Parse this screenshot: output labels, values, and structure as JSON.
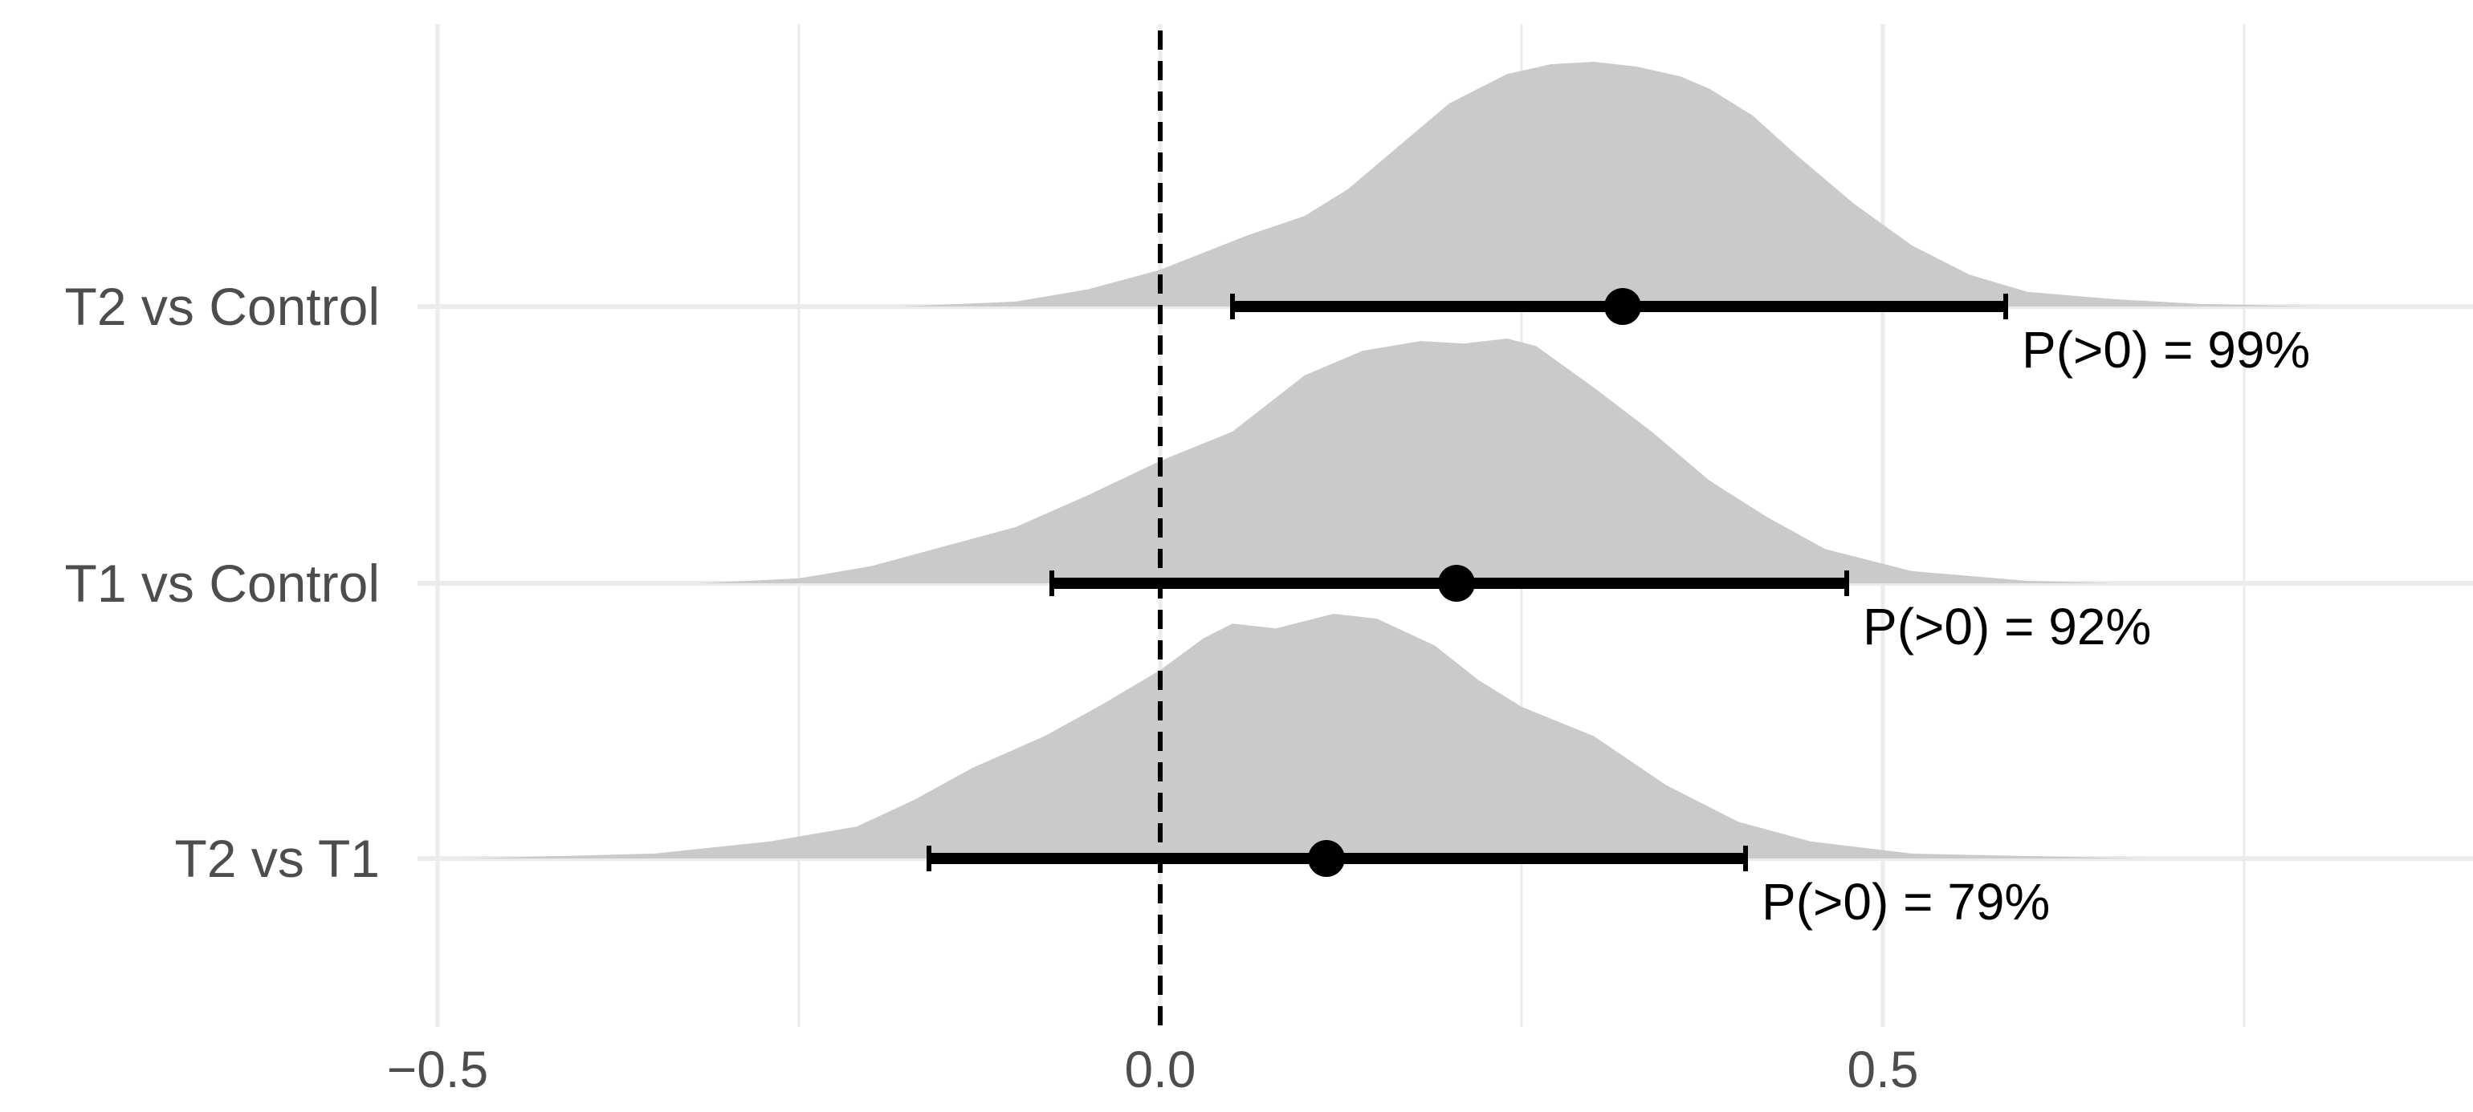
{
  "chart_data": {
    "type": "density-interval",
    "title": "",
    "xlabel": "",
    "ylabel": "",
    "xlim": [
      -0.5,
      0.92
    ],
    "x_ticks": [
      {
        "value": -0.5,
        "label": "−0.5"
      },
      {
        "value": 0.0,
        "label": "0.0"
      },
      {
        "value": 0.5,
        "label": "0.5"
      }
    ],
    "x_minor_ticks": [
      -0.25,
      0.25,
      0.75
    ],
    "reference_line": {
      "x": 0,
      "style": "dashed"
    },
    "grid": true,
    "colors": {
      "density": "#cacaca",
      "interval": "#000000",
      "grid": "#ebebeb"
    },
    "rows": [
      {
        "label": "T2 vs Control",
        "point": 0.32,
        "interval": [
          0.05,
          0.585
        ],
        "prob_label": "P(>0) = 99%",
        "density": {
          "x": [
            -0.18,
            -0.1,
            -0.05,
            0.0,
            0.03,
            0.06,
            0.1,
            0.13,
            0.16,
            0.2,
            0.24,
            0.27,
            0.3,
            0.33,
            0.36,
            0.38,
            0.41,
            0.44,
            0.48,
            0.52,
            0.56,
            0.6,
            0.66,
            0.72,
            0.8
          ],
          "y": [
            0.0,
            0.02,
            0.07,
            0.15,
            0.22,
            0.29,
            0.37,
            0.48,
            0.63,
            0.83,
            0.95,
            0.99,
            1.0,
            0.98,
            0.94,
            0.89,
            0.78,
            0.62,
            0.42,
            0.25,
            0.13,
            0.06,
            0.03,
            0.01,
            0.0
          ]
        }
      },
      {
        "label": "T1 vs Control",
        "point": 0.205,
        "interval": [
          -0.075,
          0.475
        ],
        "prob_label": "P(>0) = 92%",
        "density": {
          "x": [
            -0.32,
            -0.25,
            -0.2,
            -0.15,
            -0.1,
            -0.05,
            0.0,
            0.05,
            0.1,
            0.14,
            0.18,
            0.21,
            0.24,
            0.26,
            0.3,
            0.34,
            0.38,
            0.42,
            0.46,
            0.52,
            0.6,
            0.66
          ],
          "y": [
            0.0,
            0.02,
            0.07,
            0.15,
            0.23,
            0.36,
            0.5,
            0.62,
            0.85,
            0.95,
            0.99,
            0.98,
            1.0,
            0.97,
            0.8,
            0.62,
            0.42,
            0.27,
            0.14,
            0.05,
            0.01,
            0.0
          ]
        }
      },
      {
        "label": "T2 vs T1",
        "point": 0.115,
        "interval": [
          -0.16,
          0.405
        ],
        "prob_label": "P(>0) = 79%",
        "density": {
          "x": [
            -0.48,
            -0.35,
            -0.27,
            -0.21,
            -0.17,
            -0.13,
            -0.08,
            -0.04,
            0.0,
            0.03,
            0.05,
            0.08,
            0.12,
            0.15,
            0.19,
            0.22,
            0.25,
            0.3,
            0.35,
            0.4,
            0.45,
            0.52,
            0.6,
            0.68
          ],
          "y": [
            0.0,
            0.02,
            0.07,
            0.13,
            0.24,
            0.37,
            0.5,
            0.63,
            0.77,
            0.9,
            0.96,
            0.94,
            1.0,
            0.98,
            0.87,
            0.73,
            0.62,
            0.5,
            0.3,
            0.15,
            0.07,
            0.02,
            0.01,
            0.0
          ]
        }
      }
    ]
  }
}
